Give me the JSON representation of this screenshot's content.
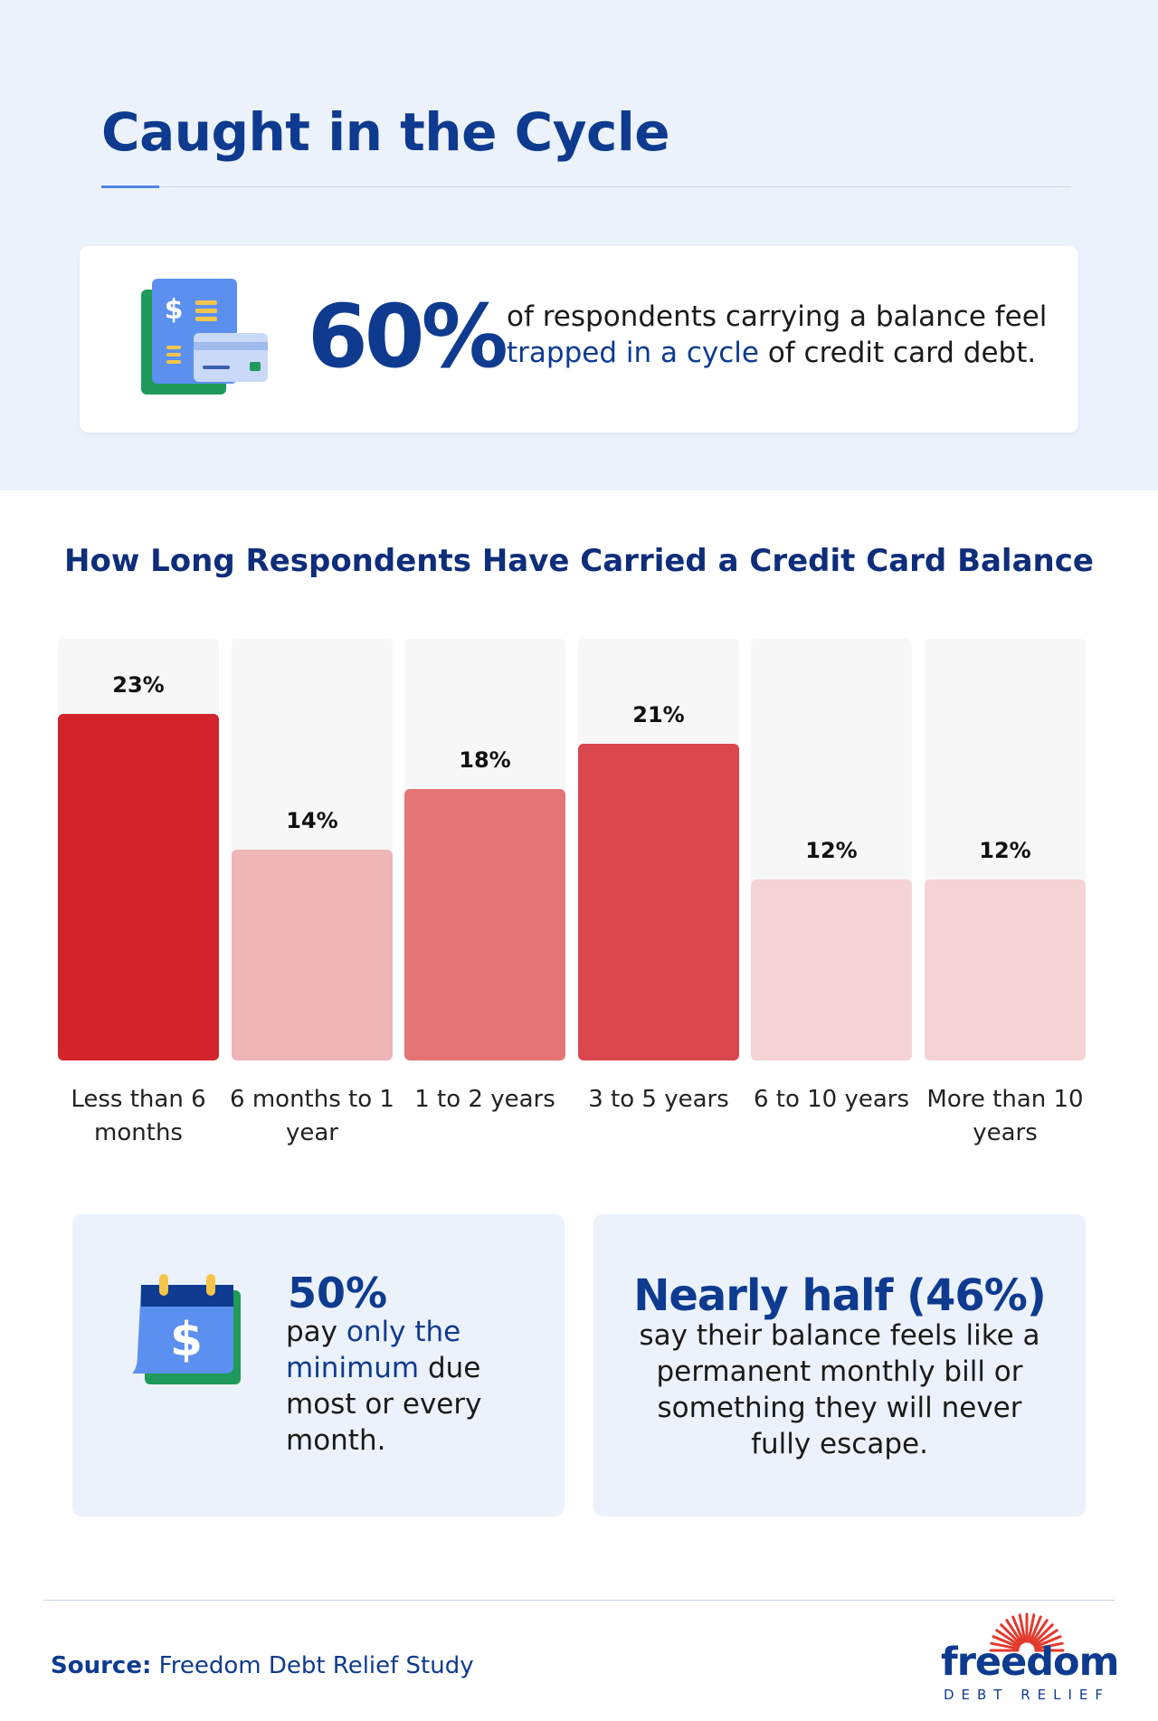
{
  "header": {
    "title": "Caught in the Cycle"
  },
  "stat_card": {
    "number": "60%",
    "text_prefix": "of respondents carrying a balance feel",
    "text_emphasis": "trapped in a cycle",
    "text_suffix": "of credit card debt.",
    "icon": "wallet-card-icon"
  },
  "chart_title": "How Long Respondents Have Carried a Credit Card Balance",
  "chart_data": {
    "type": "bar",
    "title": "How Long Respondents Have Carried a Credit Card Balance",
    "categories": [
      "Less than 6 months",
      "6 months to 1 year",
      "1 to 2 years",
      "3 to 5 years",
      "6 to 10 years",
      "More than 10 years"
    ],
    "values": [
      23,
      14,
      18,
      21,
      12,
      12
    ],
    "value_labels": [
      "23%",
      "14%",
      "18%",
      "21%",
      "12%",
      "12%"
    ],
    "ylim": [
      0,
      28
    ],
    "unit": "%",
    "bar_colors": [
      "#d2232b",
      "#efb5b7",
      "#e37577",
      "#d9464c",
      "#f5d3d4",
      "#f5d3d4"
    ],
    "track_color": "#f7f7f8"
  },
  "card_left": {
    "big": "50%",
    "text_prefix": "pay",
    "text_emphasis": "only the minimum",
    "text_suffix": "due most or every month.",
    "icon": "calendar-dollar-icon"
  },
  "card_right": {
    "big": "Nearly half (46%)",
    "text": "say their balance feels like a permanent monthly bill or something they will never fully escape."
  },
  "footer": {
    "source_label": "Source:",
    "source_text": "Freedom Debt Relief Study",
    "logo_word": "freedom",
    "logo_sub": "DEBT RELIEF"
  },
  "colors": {
    "navy": "#0e3b8f",
    "hero_bg": "#ecf2fc",
    "accent_red": "#d2232b"
  }
}
